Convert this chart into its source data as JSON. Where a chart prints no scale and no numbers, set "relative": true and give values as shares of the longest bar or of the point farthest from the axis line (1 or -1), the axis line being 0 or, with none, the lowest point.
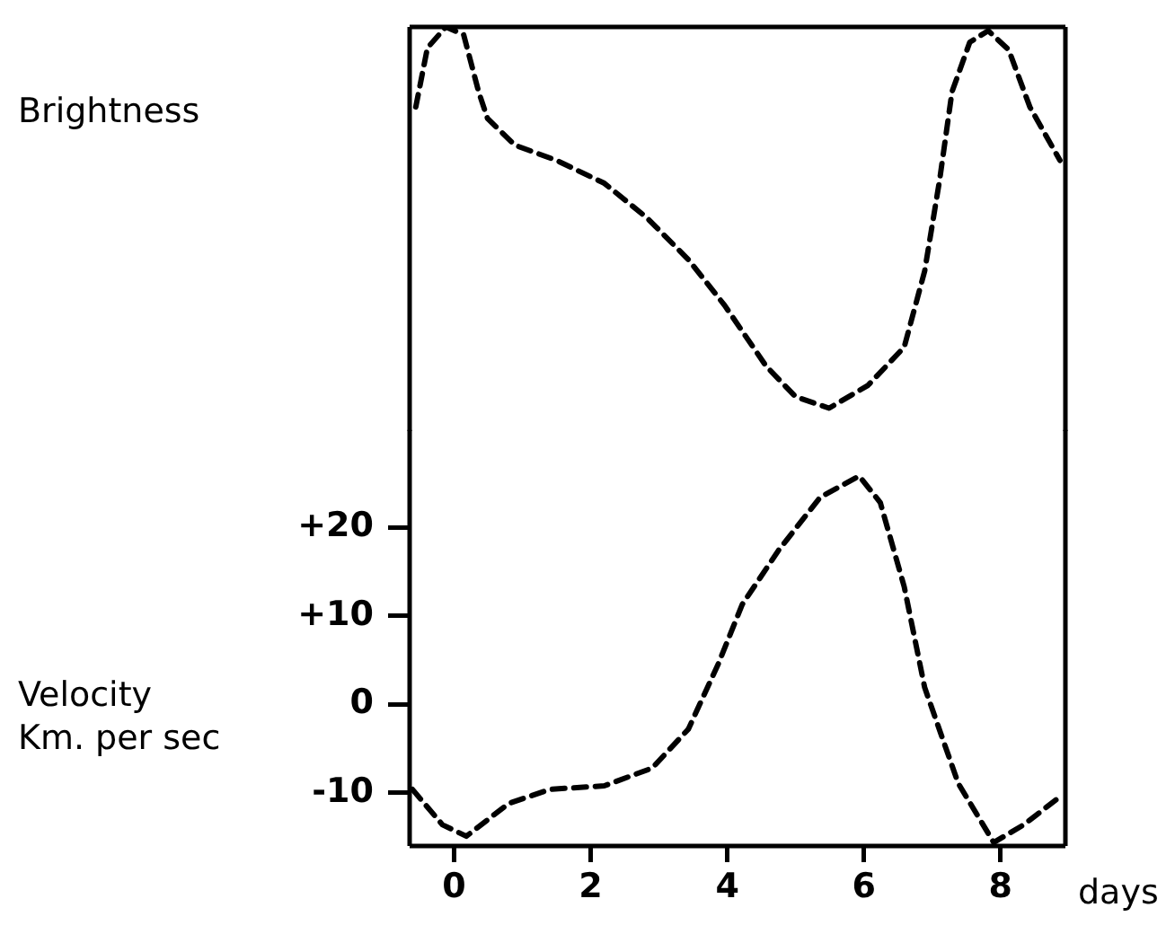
{
  "chart_data": [
    {
      "type": "line",
      "relative": true,
      "ylabel": "Brightness",
      "xlim": [
        -0.65,
        8.95
      ],
      "xticks": [
        0,
        2,
        4,
        6,
        8
      ],
      "tick_labels": false,
      "marker": "none",
      "line_style": "dashed",
      "color": "#000000",
      "x": [
        -0.56,
        -0.39,
        -0.12,
        0.14,
        0.36,
        0.49,
        0.89,
        1.5,
        2.2,
        2.82,
        3.43,
        3.96,
        4.57,
        5.0,
        5.49,
        6.06,
        6.59,
        6.89,
        7.11,
        7.29,
        7.55,
        7.82,
        8.12,
        8.43,
        8.87
      ],
      "values": [
        0.79,
        0.945,
        1.0,
        0.98,
        0.83,
        0.76,
        0.69,
        0.65,
        0.59,
        0.5,
        0.39,
        0.27,
        0.11,
        0.03,
        0.0,
        0.06,
        0.16,
        0.36,
        0.6,
        0.83,
        0.96,
        0.99,
        0.94,
        0.79,
        0.65
      ]
    },
    {
      "type": "line",
      "ylabel": "Velocity\nKm. per sec",
      "xlabel": "days",
      "xlim": [
        -0.65,
        8.95
      ],
      "xticks": [
        0,
        2,
        4,
        6,
        8
      ],
      "ylim": [
        -16,
        31
      ],
      "yticks": [
        {
          "value": -10,
          "label": "-10"
        },
        0,
        {
          "value": 10,
          "label": "+10"
        },
        {
          "value": 20,
          "label": "+20"
        }
      ],
      "marker": "none",
      "line_style": "dashed",
      "color": "#000000",
      "x": [
        -0.61,
        -0.17,
        0.18,
        0.8,
        1.41,
        2.2,
        2.9,
        3.43,
        3.87,
        4.22,
        4.75,
        5.36,
        5.93,
        6.24,
        6.59,
        6.89,
        7.38,
        7.9,
        8.34,
        8.91
      ],
      "values": [
        -9.6,
        -13.6,
        -14.9,
        -11.2,
        -9.6,
        -9.2,
        -7.2,
        -2.8,
        4.6,
        11.3,
        17.4,
        23.4,
        25.8,
        22.8,
        13.3,
        1.9,
        -8.9,
        -15.6,
        -13.6,
        -10.2
      ]
    }
  ]
}
